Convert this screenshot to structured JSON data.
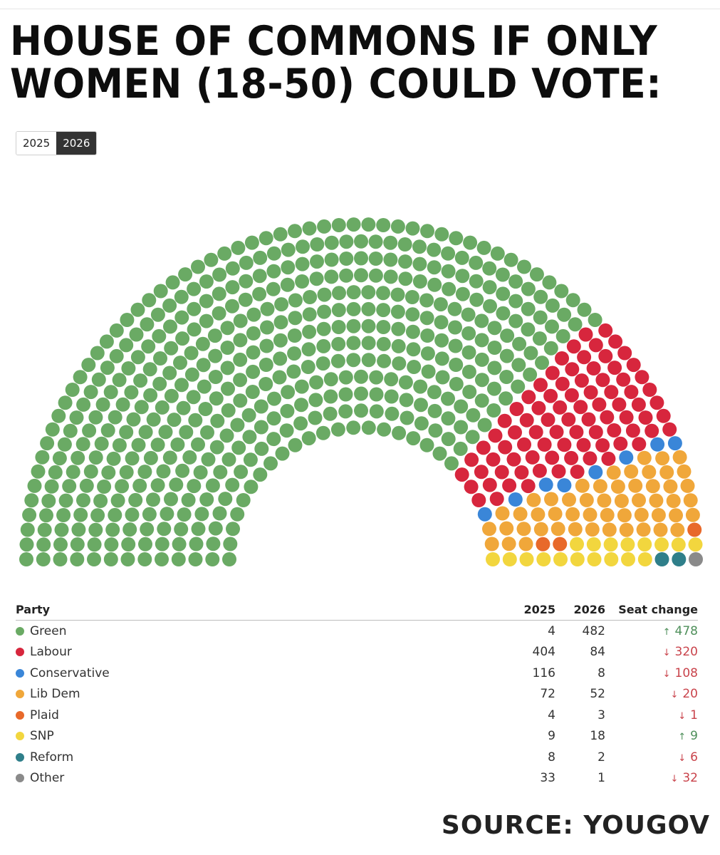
{
  "title": "HOUSE OF COMMONS IF ONLY WOMEN (18-50) COULD VOTE:",
  "year_toggle": {
    "options": [
      "2025",
      "2026"
    ],
    "selected": "2026"
  },
  "table": {
    "headers": {
      "party": "Party",
      "y2025": "2025",
      "y2026": "2026",
      "change": "Seat change"
    },
    "rows": [
      {
        "party": "Green",
        "color": "#6aaa64",
        "y2025": "4",
        "y2026": "482",
        "direction": "up",
        "arrow": "↑",
        "change": "478"
      },
      {
        "party": "Labour",
        "color": "#d7263d",
        "y2025": "404",
        "y2026": "84",
        "direction": "down",
        "arrow": "↓",
        "change": "320"
      },
      {
        "party": "Conservative",
        "color": "#3a86d8",
        "y2025": "116",
        "y2026": "8",
        "direction": "down",
        "arrow": "↓",
        "change": "108"
      },
      {
        "party": "Lib Dem",
        "color": "#f0a73a",
        "y2025": "72",
        "y2026": "52",
        "direction": "down",
        "arrow": "↓",
        "change": "20"
      },
      {
        "party": "Plaid",
        "color": "#e8692a",
        "y2025": "4",
        "y2026": "3",
        "direction": "down",
        "arrow": "↓",
        "change": "1"
      },
      {
        "party": "SNP",
        "color": "#f2d63e",
        "y2025": "9",
        "y2026": "18",
        "direction": "up",
        "arrow": "↑",
        "change": "9"
      },
      {
        "party": "Reform",
        "color": "#2f7f8a",
        "y2025": "8",
        "y2026": "2",
        "direction": "down",
        "arrow": "↓",
        "change": "6"
      },
      {
        "party": "Other",
        "color": "#8a8a8a",
        "y2025": "33",
        "y2026": "1",
        "direction": "down",
        "arrow": "↓",
        "change": "32"
      }
    ]
  },
  "chart_data": {
    "type": "parliament",
    "year": "2026",
    "total_seats": 650,
    "series": [
      {
        "name": "Green",
        "color": "#6aaa64",
        "seats": 482
      },
      {
        "name": "Labour",
        "color": "#d7263d",
        "seats": 84
      },
      {
        "name": "Conservative",
        "color": "#3a86d8",
        "seats": 8
      },
      {
        "name": "Lib Dem",
        "color": "#f0a73a",
        "seats": 52
      },
      {
        "name": "Plaid",
        "color": "#e8692a",
        "seats": 3
      },
      {
        "name": "SNP",
        "color": "#f2d63e",
        "seats": 18
      },
      {
        "name": "Reform",
        "color": "#2f7f8a",
        "seats": 2
      },
      {
        "name": "Other",
        "color": "#8a8a8a",
        "seats": 1
      }
    ]
  },
  "source": "SOURCE: YOUGOV"
}
